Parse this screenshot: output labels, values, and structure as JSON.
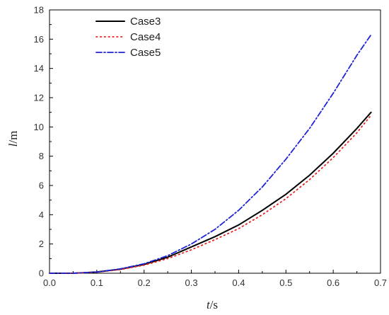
{
  "chart_data": {
    "type": "line",
    "title": "",
    "xlabel_var": "t",
    "xlabel_unit": "/s",
    "ylabel_var": "l",
    "ylabel_unit": "/m",
    "xlim": [
      0.0,
      0.7
    ],
    "ylim": [
      0,
      18
    ],
    "xticks": [
      "0.0",
      "0.1",
      "0.2",
      "0.3",
      "0.4",
      "0.5",
      "0.6",
      "0.7"
    ],
    "xtick_values": [
      0.0,
      0.1,
      0.2,
      0.3,
      0.4,
      0.5,
      0.6,
      0.7
    ],
    "yticks": [
      "0",
      "2",
      "4",
      "6",
      "8",
      "10",
      "12",
      "14",
      "16",
      "18"
    ],
    "ytick_values": [
      0,
      2,
      4,
      6,
      8,
      10,
      12,
      14,
      16,
      18
    ],
    "grid": false,
    "legend_position": "top-left",
    "series": [
      {
        "name": "Case3",
        "color": "#000000",
        "style": "solid",
        "x": [
          0.0,
          0.05,
          0.1,
          0.15,
          0.2,
          0.25,
          0.3,
          0.35,
          0.4,
          0.45,
          0.5,
          0.55,
          0.6,
          0.65,
          0.68
        ],
        "y": [
          0.0,
          0.0,
          0.08,
          0.28,
          0.6,
          1.1,
          1.8,
          2.5,
          3.3,
          4.3,
          5.4,
          6.7,
          8.2,
          9.9,
          11.0
        ]
      },
      {
        "name": "Case4",
        "color": "#e8231f",
        "style": "dotted",
        "x": [
          0.0,
          0.05,
          0.1,
          0.15,
          0.2,
          0.25,
          0.3,
          0.35,
          0.4,
          0.45,
          0.5,
          0.55,
          0.6,
          0.65,
          0.68
        ],
        "y": [
          0.0,
          0.0,
          0.07,
          0.25,
          0.55,
          1.0,
          1.6,
          2.3,
          3.05,
          4.0,
          5.1,
          6.4,
          7.9,
          9.6,
          10.8
        ]
      },
      {
        "name": "Case5",
        "color": "#1f24d6",
        "style": "dashdot",
        "x": [
          0.0,
          0.05,
          0.1,
          0.15,
          0.2,
          0.25,
          0.3,
          0.35,
          0.4,
          0.45,
          0.5,
          0.55,
          0.6,
          0.65,
          0.68
        ],
        "y": [
          0.0,
          0.0,
          0.08,
          0.3,
          0.65,
          1.2,
          2.0,
          3.0,
          4.3,
          5.9,
          7.8,
          9.9,
          12.3,
          14.9,
          16.3
        ]
      }
    ]
  }
}
